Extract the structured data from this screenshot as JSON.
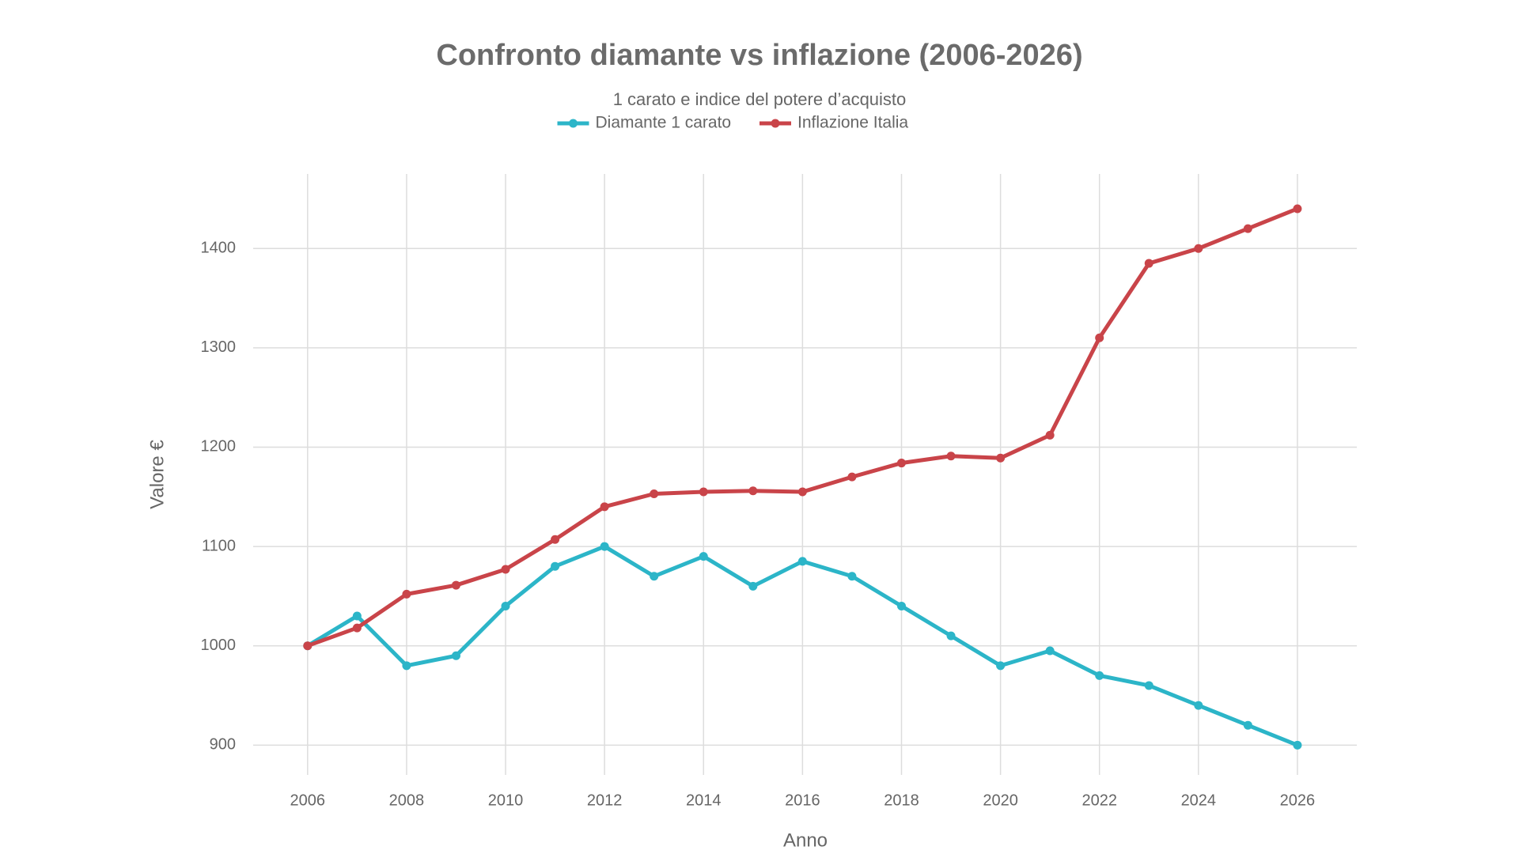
{
  "chart_data": {
    "type": "line",
    "title": "Confronto diamante vs inflazione (2006-2026)",
    "subtitle": "1 carato e indice del potere d’acquisto",
    "x_label": "Anno",
    "y_label": "Valore €",
    "x": [
      2006,
      2007,
      2008,
      2009,
      2010,
      2011,
      2012,
      2013,
      2014,
      2015,
      2016,
      2017,
      2018,
      2019,
      2020,
      2021,
      2022,
      2023,
      2024,
      2025,
      2026
    ],
    "series": [
      {
        "name": "Diamante 1 carato",
        "color": "#2cb5c8",
        "values": [
          1000,
          1030,
          980,
          990,
          1040,
          1080,
          1100,
          1070,
          1090,
          1060,
          1085,
          1070,
          1040,
          1010,
          980,
          995,
          970,
          960,
          940,
          920,
          900
        ]
      },
      {
        "name": "Inflazione Italia",
        "color": "#c94449",
        "values": [
          1000,
          1018,
          1052,
          1061,
          1077,
          1107,
          1140,
          1153,
          1155,
          1156,
          1155,
          1170,
          1184,
          1191,
          1189,
          1212,
          1310,
          1385,
          1400,
          1420,
          1440
        ]
      }
    ],
    "xlim": [
      2004.9,
      2027.2
    ],
    "xticks": [
      2006,
      2008,
      2010,
      2012,
      2014,
      2016,
      2018,
      2020,
      2022,
      2024,
      2026
    ],
    "ylim": [
      870,
      1475
    ],
    "yticks": [
      900,
      1000,
      1100,
      1200,
      1300,
      1400
    ],
    "grid": true,
    "legend": "top"
  }
}
